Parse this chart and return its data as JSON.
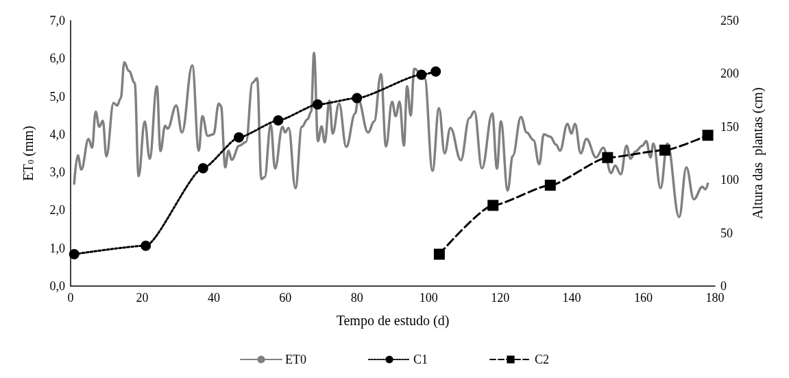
{
  "chart_data": {
    "type": "line",
    "xlabel": "Tempo de estudo (d)",
    "ylabel": "ET$_{0}$ (mm)",
    "y2label": "Altura das  plantas (cm)",
    "xlim": [
      0,
      180
    ],
    "xticks": [
      0,
      20,
      40,
      60,
      80,
      100,
      120,
      140,
      160,
      180
    ],
    "ylim": [
      0,
      7
    ],
    "yticks": [
      {
        "value": 0,
        "label": "0,0"
      },
      {
        "value": 1,
        "label": "1,0"
      },
      {
        "value": 2,
        "label": "2,0"
      },
      {
        "value": 3,
        "label": "3,0"
      },
      {
        "value": 4,
        "label": "4,0"
      },
      {
        "value": 5,
        "label": "5,0"
      },
      {
        "value": 6,
        "label": "6,0"
      },
      {
        "value": 7,
        "label": "7,0"
      }
    ],
    "y2lim": [
      0,
      250
    ],
    "y2ticks": [
      0,
      50,
      100,
      150,
      200,
      250
    ],
    "grid": false,
    "legend": "bottom",
    "series": [
      {
        "name": "ET0",
        "color": "#808080",
        "marker": "none",
        "line_style": "solid",
        "x": [
          1,
          2,
          3,
          5,
          6,
          7,
          8,
          9,
          10,
          12,
          13,
          14,
          15,
          16.3,
          17.9,
          19,
          20.7,
          22.1,
          24.1,
          25.1,
          26.4,
          27.1,
          29.5,
          31.1,
          34,
          35.8,
          36.8,
          38.3,
          39.9,
          41.4,
          42,
          43.2,
          44.1,
          45,
          47.1,
          49,
          50.8,
          52.1,
          53.3,
          54.2,
          55.9,
          57.1,
          59.2,
          59.9,
          60.9,
          62.8,
          64.6,
          66.2,
          67.2,
          68,
          69.1,
          70.1,
          71,
          72.3,
          73.2,
          75,
          77,
          79.5,
          80.3,
          83.1,
          84.8,
          86.7,
          88.1,
          89.8,
          90.8,
          91.9,
          93.1,
          94,
          95,
          96,
          98.9,
          101.1,
          102.9,
          104.5,
          106.1,
          109,
          111.4,
          112.8,
          114.9,
          117.8,
          119.1,
          120.2,
          122.1,
          123.5,
          125.8,
          127.4,
          129.3,
          130.9,
          132.2,
          134,
          135.6,
          136.7,
          138.8,
          139.9,
          140.9,
          142.5,
          144.1,
          146.8,
          148.8,
          151,
          152.1,
          153.7,
          155.3,
          156.4,
          157.8,
          159.7,
          160.8,
          162,
          162.8,
          164.8,
          166.7,
          170,
          172,
          174.1,
          176.5,
          177.3,
          178
        ],
        "values": [
          2.7,
          3.45,
          3.07,
          3.88,
          3.65,
          4.6,
          4.2,
          4.36,
          3.42,
          4.83,
          4.76,
          4.95,
          5.9,
          5.67,
          5.36,
          2.9,
          4.34,
          3.36,
          5.27,
          3.56,
          4.23,
          4.15,
          4.76,
          4.05,
          5.82,
          3.57,
          4.48,
          3.96,
          4.0,
          4.81,
          4.75,
          3.13,
          3.57,
          3.33,
          3.7,
          3.8,
          5.36,
          5.48,
          2.82,
          2.87,
          4.26,
          3.1,
          4.2,
          4.05,
          4.17,
          2.58,
          4.2,
          4.4,
          4.6,
          6.15,
          3.82,
          4.21,
          3.79,
          4.89,
          4.02,
          4.81,
          3.67,
          4.55,
          4.92,
          4.05,
          4.34,
          5.59,
          3.68,
          4.86,
          4.48,
          4.86,
          3.7,
          5.27,
          4.5,
          5.73,
          5.47,
          3.04,
          4.69,
          3.5,
          4.17,
          3.32,
          4.43,
          4.61,
          3.1,
          4.55,
          3.1,
          4.34,
          2.52,
          3.43,
          4.46,
          4.05,
          3.85,
          3.21,
          4.0,
          3.94,
          3.73,
          3.57,
          4.28,
          4.02,
          4.28,
          3.5,
          3.88,
          3.39,
          3.65,
          2.98,
          3.18,
          2.95,
          3.7,
          3.36,
          3.55,
          3.7,
          3.82,
          3.39,
          3.76,
          2.58,
          3.76,
          1.82,
          3.13,
          2.29,
          2.62,
          2.55,
          2.7
        ]
      },
      {
        "name": "C1",
        "color": "#000000",
        "marker": "circle",
        "line_style": "dotted",
        "axis": "y2",
        "x": [
          1,
          21,
          37,
          47,
          58,
          69,
          80,
          98,
          102
        ],
        "values": [
          30,
          38,
          111,
          140,
          156,
          171,
          177,
          199,
          202
        ]
      },
      {
        "name": "C2",
        "color": "#000000",
        "marker": "square",
        "line_style": "dashed",
        "axis": "y2",
        "x": [
          103,
          118,
          134,
          150,
          166,
          178
        ],
        "values": [
          30,
          76,
          95,
          121,
          128,
          142
        ]
      }
    ]
  }
}
